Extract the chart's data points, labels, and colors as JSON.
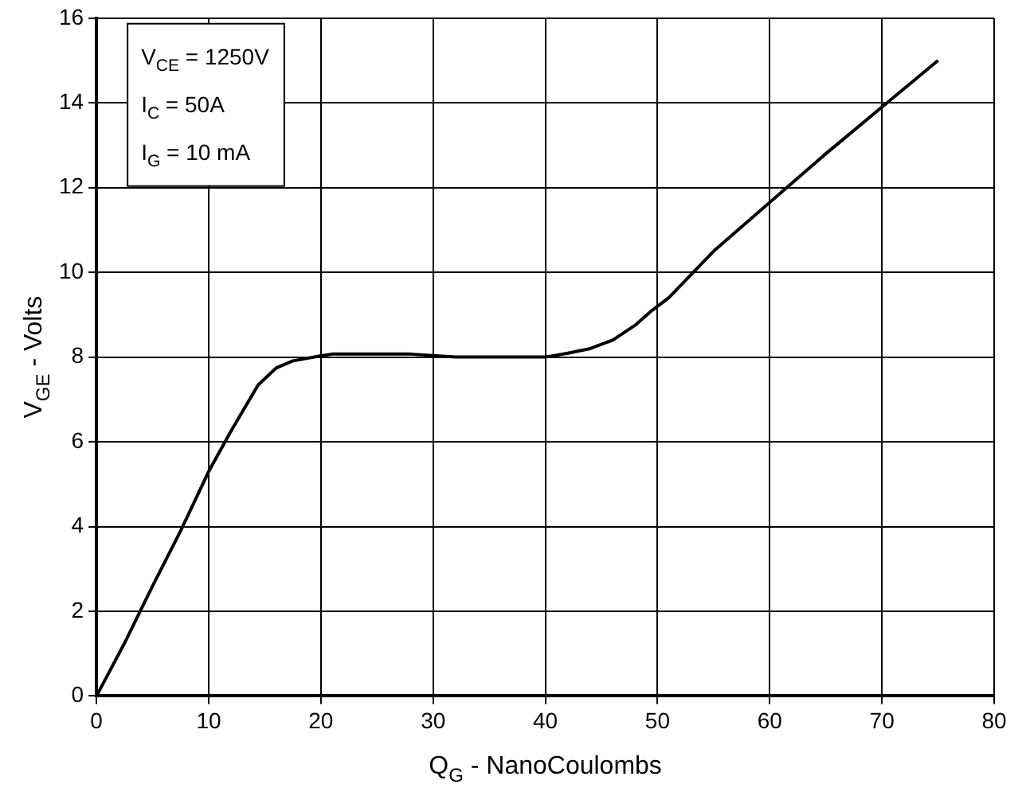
{
  "chart_data": {
    "type": "line",
    "xlabel": "Q$_{G}$ - NanoCoulombs",
    "ylabel": "V$_{GE}$ - Volts",
    "annotations": [
      "V$_{CE}$ = 1250V",
      "I$_{C}$ = 50A",
      "I$_{G}$ = 10 mA"
    ],
    "xlim": [
      0,
      80
    ],
    "xticks": [
      0,
      10,
      20,
      30,
      40,
      50,
      60,
      70,
      80
    ],
    "ylim": [
      0,
      16
    ],
    "yticks": [
      0,
      2,
      4,
      6,
      8,
      10,
      12,
      14,
      16
    ],
    "grid": true,
    "marker": "none",
    "line_style": "solid",
    "series": [
      {
        "color": "#000000",
        "x": [
          0,
          2.6,
          5,
          7.5,
          10,
          12,
          14.4,
          16,
          17.5,
          20,
          21,
          28,
          32,
          40,
          42,
          44,
          46,
          48,
          49.5,
          51,
          55,
          60,
          65,
          70,
          75
        ],
        "values": [
          0,
          1.3,
          2.6,
          3.9,
          5.3,
          6.26,
          7.34,
          7.74,
          7.91,
          8.03,
          8.07,
          8.07,
          8.0,
          8.0,
          8.09,
          8.2,
          8.4,
          8.75,
          9.1,
          9.4,
          10.5,
          11.65,
          12.8,
          13.9,
          15
        ]
      }
    ]
  }
}
